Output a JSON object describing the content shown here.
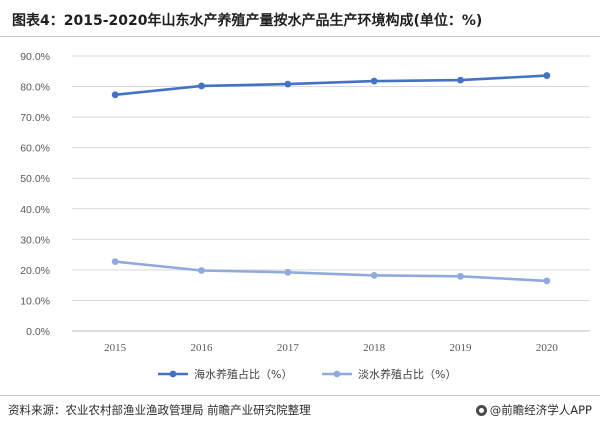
{
  "title": "图表4：2015-2020年山东水产养殖产量按水产品生产环境构成(单位：%)",
  "source": "资料来源：农业农村部渔业渔政管理局 前瞻产业研究院整理",
  "brand": "@前瞻经济学人APP",
  "colors": {
    "series_sea": "#4472C4",
    "series_fresh": "#8FAADC",
    "grid": "#d9d9d9",
    "axis_text": "#595959"
  },
  "chart_data": {
    "type": "line",
    "categories": [
      "2015",
      "2016",
      "2017",
      "2018",
      "2019",
      "2020"
    ],
    "ylim": [
      0,
      90
    ],
    "yticks": [
      "0.0%",
      "10.0%",
      "20.0%",
      "30.0%",
      "40.0%",
      "50.0%",
      "60.0%",
      "70.0%",
      "80.0%",
      "90.0%"
    ],
    "series": [
      {
        "name": "海水养殖占比（%）",
        "values": [
          77.3,
          80.2,
          80.8,
          81.8,
          82.1,
          83.6
        ]
      },
      {
        "name": "淡水养殖占比（%）",
        "values": [
          22.7,
          19.8,
          19.2,
          18.2,
          17.9,
          16.4
        ]
      }
    ],
    "legend": "bottom"
  }
}
